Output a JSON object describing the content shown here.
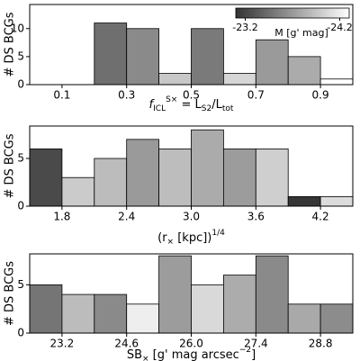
{
  "chart_data": [
    {
      "type": "histogram",
      "ylabel": "# DS BCGs",
      "xlabel": [
        {
          "text": "f",
          "shift": "none"
        },
        {
          "text": "ICL",
          "shift": "sub"
        },
        {
          "text": "S×",
          "shift": "sup"
        },
        {
          "text": " = ",
          "shift": "none"
        },
        {
          "text": "L",
          "shift": "none"
        },
        {
          "text": "S2",
          "shift": "sub"
        },
        {
          "text": "/",
          "shift": "none"
        },
        {
          "text": "L",
          "shift": "none"
        },
        {
          "text": "tot",
          "shift": "sub"
        }
      ],
      "bins": [
        0.0,
        0.1,
        0.2,
        0.3,
        0.4,
        0.5,
        0.6,
        0.7,
        0.8,
        0.9,
        1.0
      ],
      "values": [
        0,
        0,
        11,
        10,
        2,
        10,
        2,
        8,
        5,
        1
      ],
      "colors": [
        "#ffffff",
        "#ffffff",
        "#6f6f6f",
        "#8a8a8a",
        "#c8c8c8",
        "#7a7a7a",
        "#d6d6d6",
        "#9a9a9a",
        "#ababab",
        "#ffffff"
      ],
      "xlim": [
        0.0,
        1.0
      ],
      "ylim": [
        0,
        14.3
      ],
      "xticks": [
        0.1,
        0.3,
        0.5,
        0.7,
        0.9
      ],
      "yticks": [
        0,
        5,
        10
      ],
      "colorbar": {
        "label": "M [g' mag]",
        "clim": [
          -23.1,
          -24.3
        ],
        "colors": [
          "#333333",
          "#ffffff"
        ],
        "ticks": [
          -23.2,
          -24.2
        ]
      }
    },
    {
      "type": "histogram",
      "ylabel": "# DS BCGs",
      "xlabel": [
        {
          "text": "(r",
          "shift": "none"
        },
        {
          "text": "×",
          "shift": "sub"
        },
        {
          "text": " [kpc])",
          "shift": "none"
        },
        {
          "text": "1/4",
          "shift": "sup"
        }
      ],
      "bins": [
        1.5,
        1.8,
        2.1,
        2.4,
        2.7,
        3.0,
        3.3,
        3.6,
        3.9,
        4.2,
        4.5
      ],
      "values": [
        6,
        3,
        5,
        7,
        6,
        8,
        6,
        6,
        1,
        1
      ],
      "colors": [
        "#4a4a4a",
        "#cbcbcb",
        "#bcbcbc",
        "#9a9a9a",
        "#bdbdbd",
        "#ababab",
        "#9c9c9c",
        "#cfcfcf",
        "#363636",
        "#dcdcdc"
      ],
      "xlim": [
        1.5,
        4.5
      ],
      "ylim": [
        0,
        8.4
      ],
      "xticks": [
        1.8,
        2.4,
        {
          "value": 3,
          "label": "3.0"
        },
        3.6,
        4.2
      ],
      "yticks": [
        0,
        5
      ]
    },
    {
      "type": "histogram",
      "ylabel": "# DS BCGs",
      "xlabel": [
        {
          "text": "SB",
          "shift": "none"
        },
        {
          "text": "×",
          "shift": "sub"
        },
        {
          "text": " [g' mag arcsec",
          "shift": "none"
        },
        {
          "text": "−2",
          "shift": "sup"
        },
        {
          "text": "]",
          "shift": "none"
        }
      ],
      "bins": [
        22.5,
        23.2,
        23.9,
        24.6,
        25.3,
        26.0,
        26.7,
        27.4,
        28.1,
        28.8,
        29.5
      ],
      "values": [
        5,
        4,
        4,
        3,
        8,
        5,
        6,
        8,
        3,
        3
      ],
      "colors": [
        "#757575",
        "#bcbcbc",
        "#8a8a8a",
        "#eeeeee",
        "#9c9c9c",
        "#d9d9d9",
        "#acacac",
        "#8a8a8a",
        "#a9a9a9",
        "#8c8c8c"
      ],
      "xlim": [
        22.5,
        29.5
      ],
      "ylim": [
        0,
        8.2
      ],
      "xticks": [
        23.2,
        24.6,
        {
          "value": 26,
          "label": "26.0"
        },
        27.4,
        28.8
      ],
      "yticks": [
        0,
        5
      ]
    }
  ]
}
